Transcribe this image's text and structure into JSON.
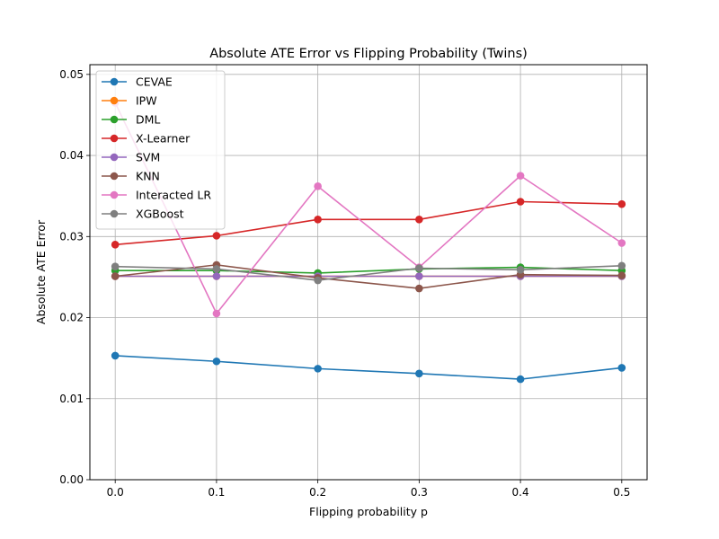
{
  "chart_data": {
    "type": "line",
    "title": "Absolute ATE Error vs Flipping Probability (Twins)",
    "xlabel": "Flipping probability p",
    "ylabel": "Absolute ATE Error",
    "x": [
      0.0,
      0.1,
      0.2,
      0.3,
      0.4,
      0.5
    ],
    "x_tick_labels": [
      "0.0",
      "0.1",
      "0.2",
      "0.3",
      "0.4",
      "0.5"
    ],
    "y_ticks": [
      0.0,
      0.01,
      0.02,
      0.03,
      0.04,
      0.05
    ],
    "y_tick_labels": [
      "0.00",
      "0.01",
      "0.02",
      "0.03",
      "0.04",
      "0.05"
    ],
    "xlim": [
      -0.025,
      0.525
    ],
    "ylim": [
      0.0,
      0.0512
    ],
    "grid": true,
    "legend_position": "top-left",
    "series": [
      {
        "name": "CEVAE",
        "color": "#1f77b4",
        "values": [
          0.0153,
          0.0146,
          0.0137,
          0.0131,
          0.0124,
          0.0138
        ]
      },
      {
        "name": "IPW",
        "color": "#ff7f0e",
        "values": [
          0.0251,
          0.0251,
          0.0251,
          0.0251,
          0.0251,
          0.0251
        ]
      },
      {
        "name": "DML",
        "color": "#2ca02c",
        "values": [
          0.0258,
          0.0258,
          0.0255,
          0.026,
          0.0262,
          0.0258
        ]
      },
      {
        "name": "X-Learner",
        "color": "#d62728",
        "values": [
          0.029,
          0.0301,
          0.0321,
          0.0321,
          0.0343,
          0.034
        ]
      },
      {
        "name": "SVM",
        "color": "#9467bd",
        "values": [
          0.0251,
          0.0251,
          0.0251,
          0.0251,
          0.0251,
          0.0251
        ]
      },
      {
        "name": "KNN",
        "color": "#8c564b",
        "values": [
          0.0251,
          0.0265,
          0.0249,
          0.0236,
          0.0253,
          0.0252
        ]
      },
      {
        "name": "Interacted LR",
        "color": "#e377c2",
        "values": [
          0.0465,
          0.0205,
          0.0362,
          0.0262,
          0.0375,
          0.0292
        ]
      },
      {
        "name": "XGBoost",
        "color": "#7f7f7f",
        "values": [
          0.0263,
          0.026,
          0.0246,
          0.0261,
          0.0259,
          0.0264
        ]
      }
    ]
  }
}
